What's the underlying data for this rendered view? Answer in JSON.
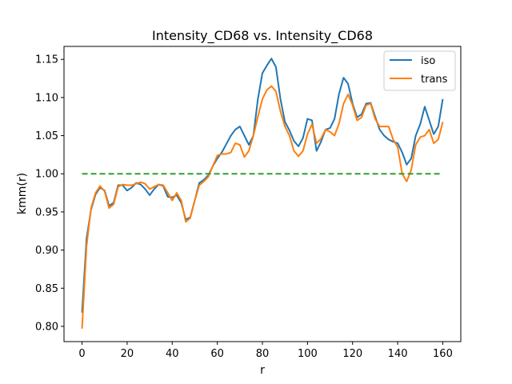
{
  "chart_data": {
    "type": "line",
    "title": "Intensity_CD68 vs. Intensity_CD68",
    "xlabel": "r",
    "ylabel": "kmm(r)",
    "xlim": [
      -8,
      168
    ],
    "ylim": [
      0.78,
      1.167
    ],
    "xticks": [
      0,
      20,
      40,
      60,
      80,
      100,
      120,
      140,
      160
    ],
    "xtick_labels": [
      "0",
      "20",
      "40",
      "60",
      "80",
      "100",
      "120",
      "140",
      "160"
    ],
    "yticks": [
      0.8,
      0.85,
      0.9,
      0.95,
      1.0,
      1.05,
      1.1,
      1.15
    ],
    "ytick_labels": [
      "0.80",
      "0.85",
      "0.90",
      "0.95",
      "1.00",
      "1.05",
      "1.10",
      "1.15"
    ],
    "grid": false,
    "legend_position": "top-right",
    "series": [
      {
        "name": "iso",
        "color": "#1f77b4",
        "style": "solid",
        "x": [
          0,
          2,
          4,
          6,
          8,
          10,
          12,
          14,
          16,
          18,
          20,
          22,
          24,
          26,
          28,
          30,
          32,
          34,
          36,
          38,
          40,
          42,
          44,
          46,
          48,
          50,
          52,
          54,
          56,
          58,
          60,
          62,
          64,
          66,
          68,
          70,
          72,
          74,
          76,
          78,
          80,
          82,
          84,
          86,
          88,
          90,
          92,
          94,
          96,
          98,
          100,
          102,
          104,
          106,
          108,
          110,
          112,
          114,
          116,
          118,
          120,
          122,
          124,
          126,
          128,
          130,
          132,
          134,
          136,
          138,
          140,
          142,
          144,
          146,
          148,
          150,
          152,
          154,
          156,
          158,
          160
        ],
        "values": [
          0.818,
          0.915,
          0.953,
          0.973,
          0.982,
          0.978,
          0.958,
          0.962,
          0.985,
          0.985,
          0.978,
          0.982,
          0.988,
          0.986,
          0.98,
          0.972,
          0.98,
          0.986,
          0.984,
          0.97,
          0.969,
          0.972,
          0.962,
          0.94,
          0.943,
          0.965,
          0.988,
          0.992,
          0.998,
          1.01,
          1.02,
          1.028,
          1.039,
          1.05,
          1.058,
          1.062,
          1.05,
          1.038,
          1.05,
          1.098,
          1.132,
          1.142,
          1.151,
          1.14,
          1.098,
          1.068,
          1.057,
          1.043,
          1.036,
          1.047,
          1.072,
          1.07,
          1.03,
          1.042,
          1.058,
          1.06,
          1.072,
          1.105,
          1.126,
          1.118,
          1.092,
          1.074,
          1.078,
          1.092,
          1.093,
          1.075,
          1.058,
          1.05,
          1.045,
          1.042,
          1.04,
          1.028,
          1.012,
          1.02,
          1.05,
          1.065,
          1.088,
          1.07,
          1.052,
          1.062,
          1.098
        ]
      },
      {
        "name": "trans",
        "color": "#ff7f0e",
        "style": "solid",
        "x": [
          0,
          2,
          4,
          6,
          8,
          10,
          12,
          14,
          16,
          18,
          20,
          22,
          24,
          26,
          28,
          30,
          32,
          34,
          36,
          38,
          40,
          42,
          44,
          46,
          48,
          50,
          52,
          54,
          56,
          58,
          60,
          62,
          64,
          66,
          68,
          70,
          72,
          74,
          76,
          78,
          80,
          82,
          84,
          86,
          88,
          90,
          92,
          94,
          96,
          98,
          100,
          102,
          104,
          106,
          108,
          110,
          112,
          114,
          116,
          118,
          120,
          122,
          124,
          126,
          128,
          130,
          132,
          134,
          136,
          138,
          140,
          142,
          144,
          146,
          148,
          150,
          152,
          154,
          156,
          158,
          160
        ],
        "values": [
          0.797,
          0.905,
          0.955,
          0.975,
          0.984,
          0.977,
          0.955,
          0.96,
          0.983,
          0.986,
          0.985,
          0.985,
          0.987,
          0.989,
          0.987,
          0.98,
          0.983,
          0.986,
          0.985,
          0.975,
          0.965,
          0.975,
          0.965,
          0.937,
          0.942,
          0.965,
          0.985,
          0.99,
          0.996,
          1.01,
          1.024,
          1.026,
          1.026,
          1.028,
          1.04,
          1.038,
          1.022,
          1.03,
          1.05,
          1.075,
          1.098,
          1.11,
          1.115,
          1.108,
          1.082,
          1.062,
          1.05,
          1.03,
          1.023,
          1.03,
          1.052,
          1.065,
          1.04,
          1.046,
          1.058,
          1.055,
          1.05,
          1.066,
          1.092,
          1.104,
          1.09,
          1.07,
          1.074,
          1.09,
          1.092,
          1.072,
          1.062,
          1.062,
          1.062,
          1.045,
          1.035,
          1.0,
          0.99,
          1.005,
          1.038,
          1.048,
          1.05,
          1.058,
          1.04,
          1.045,
          1.068
        ]
      },
      {
        "color": "#2ca02c",
        "style": "dashed",
        "x": [
          0,
          160
        ],
        "values": [
          1.0,
          1.0
        ]
      }
    ]
  }
}
